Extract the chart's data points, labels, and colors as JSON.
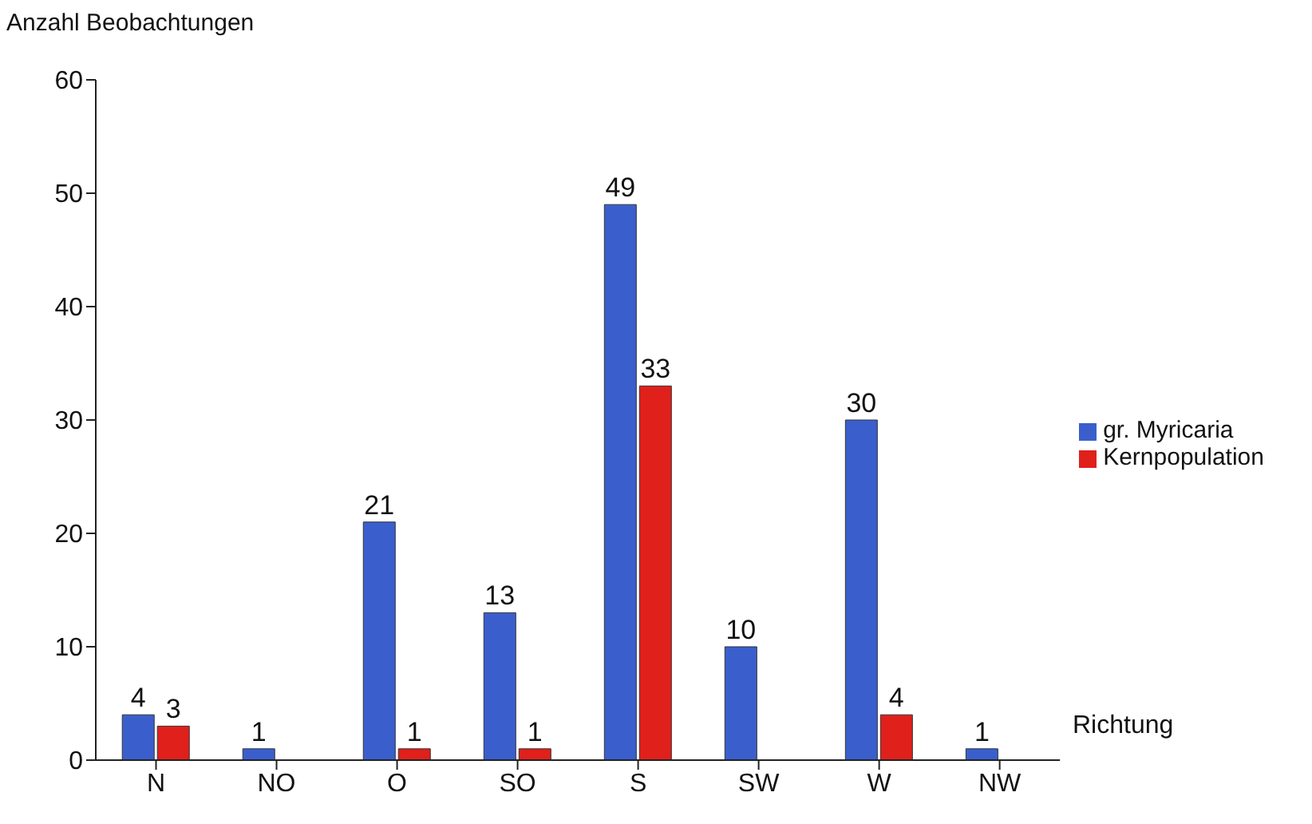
{
  "chart_data": {
    "type": "bar",
    "ylabel": "Anzahl Beobachtungen",
    "xlabel": "Richtung",
    "categories": [
      "N",
      "NO",
      "O",
      "SO",
      "S",
      "SW",
      "W",
      "NW"
    ],
    "series": [
      {
        "name": "gr. Myricaria",
        "color": "#3a5fcd",
        "values": [
          4,
          1,
          21,
          13,
          49,
          10,
          30,
          1
        ]
      },
      {
        "name": "Kernpopulation",
        "color": "#e0201b",
        "values": [
          3,
          null,
          1,
          1,
          33,
          null,
          4,
          null
        ]
      }
    ],
    "ylim": [
      0,
      60
    ],
    "yticks": [
      0,
      10,
      20,
      30,
      40,
      50,
      60
    ],
    "data_labels": true,
    "legend": "right"
  }
}
